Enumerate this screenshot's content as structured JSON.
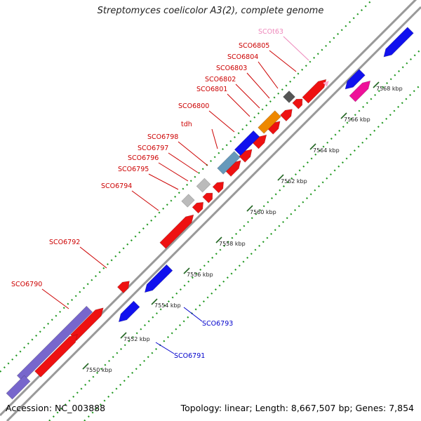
{
  "title": "Streptomyces coelicolor A3(2), complete genome",
  "accession": "Accession: NC_003888",
  "summary": "Topology: linear; Length: 8,667,507 bp; Genes: 7,854",
  "colors": {
    "gene_forward": "#ee1111",
    "gene_reverse": "#1111ee",
    "gene_orange": "#ee8800",
    "gene_purple": "#7766cc",
    "gene_magenta": "#ee1199",
    "gene_gray": "#bbbbbb",
    "gene_dark": "#555555",
    "gene_steel": "#6699bb",
    "trna": "#ffaacc",
    "label_forward": "#cc0000",
    "label_reverse": "#0000cc",
    "label_trna": "#ee88bb",
    "dots": "#229922",
    "backbone": "#999999"
  },
  "tick_labels": [
    "7550 kbp",
    "7552 kbp",
    "7554 kbp",
    "7556 kbp",
    "7558 kbp",
    "7560 kbp",
    "7562 kbp",
    "7564 kbp",
    "7566 kbp",
    "7568 kbp"
  ],
  "forward_labels": [
    "SCO6790",
    "SCO6792",
    "SCO6794",
    "SCO6795",
    "SCO6796",
    "SCO6797",
    "SCO6798",
    "tdh",
    "SCO6800",
    "SCO6801",
    "SCO6802",
    "SCO6803",
    "SCO6804",
    "SCO6805"
  ],
  "trna_label": "SCOt63",
  "reverse_labels": [
    "SCO6791",
    "SCO6793"
  ]
}
